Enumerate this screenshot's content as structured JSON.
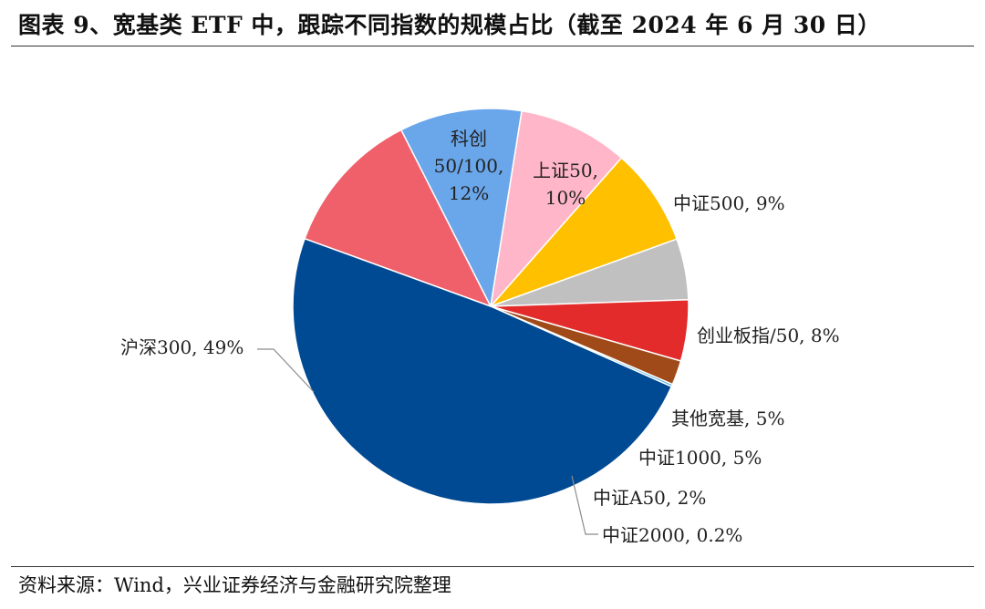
{
  "title": "图表 9、宽基类 ETF 中，跟踪不同指数的规模占比（截至 2024 年 6 月 30 日）",
  "source": "资料来源：Wind，兴业证券经济与金融研究院整理",
  "chart_data": {
    "type": "pie",
    "title": "",
    "start": "clockwise from the separator between 沪深300 and 科创50/100, near 11 o'clock",
    "slices": [
      {
        "name": "科创50/100",
        "value": 12,
        "label": "科创\n50/100,\n12%",
        "color": "#f0606a"
      },
      {
        "name": "上证50",
        "value": 10,
        "label": "上证50,\n10%",
        "color": "#6aa6ea"
      },
      {
        "name": "中证500",
        "value": 9,
        "label": "中证500, 9%",
        "color": "#ffb6c8"
      },
      {
        "name": "创业板指/50",
        "value": 8,
        "label": "创业板指/50, 8%",
        "color": "#ffc000"
      },
      {
        "name": "其他宽基",
        "value": 5,
        "label": "其他宽基, 5%",
        "color": "#c0c0c0"
      },
      {
        "name": "中证1000",
        "value": 5,
        "label": "中证1000, 5%",
        "color": "#e32b2b"
      },
      {
        "name": "中证A50",
        "value": 2,
        "label": "中证A50, 2%",
        "color": "#a04a1a"
      },
      {
        "name": "中证2000",
        "value": 0.2,
        "label": "中证2000, 0.2%",
        "color": "#4ab0e0"
      },
      {
        "name": "沪深300",
        "value": 49,
        "label": "沪深300, 49%",
        "color": "#004a94"
      }
    ]
  }
}
